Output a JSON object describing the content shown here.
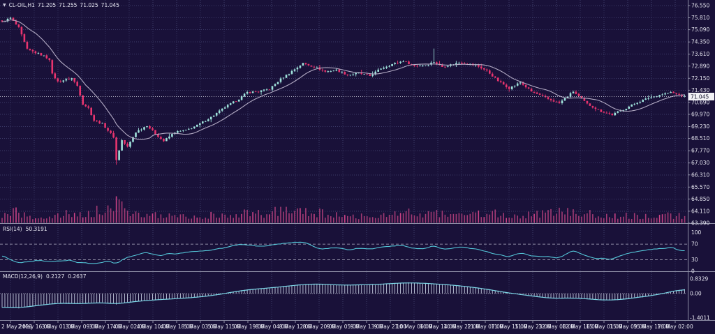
{
  "window": {
    "symbol": "CL-OIL,H1",
    "dropdown_icon": "▼",
    "ohlc": {
      "open": "71.205",
      "high": "71.255",
      "low": "71.025",
      "close": "71.045"
    }
  },
  "price_axis": {
    "labels": [
      "76.550",
      "75.810",
      "75.090",
      "74.350",
      "73.610",
      "72.890",
      "72.150",
      "71.430",
      "70.690",
      "69.970",
      "69.230",
      "68.510",
      "67.770",
      "67.030",
      "66.310",
      "65.570",
      "64.850",
      "64.110",
      "63.390"
    ],
    "current_price_tag": "71.045"
  },
  "time_axis": {
    "labels": [
      "2 May 2023",
      "2 May 16:00",
      "3 May 01:00",
      "3 May 09:00",
      "3 May 17:00",
      "4 May 02:00",
      "4 May 10:00",
      "4 May 18:00",
      "5 May 03:00",
      "5 May 11:00",
      "5 May 19:00",
      "8 May 04:00",
      "8 May 12:00",
      "8 May 20:00",
      "9 May 05:00",
      "9 May 13:00",
      "9 May 21:00",
      "10 May 06:00",
      "10 May 14:00",
      "10 May 22:00",
      "11 May 07:00",
      "11 May 15:00",
      "11 May 23:00",
      "12 May 08:00",
      "12 May 16:00",
      "15 May 01:00",
      "15 May 09:00",
      "15 May 17:00",
      "16 May 02:00"
    ]
  },
  "indicators": {
    "rsi": {
      "label": "RSI(14)",
      "value": "50.3191",
      "axis_labels": [
        "100",
        "70",
        "30",
        "0"
      ],
      "levels": [
        70,
        30
      ]
    },
    "macd": {
      "label": "MACD(12,26,9)",
      "value_main": "0.2127",
      "value_signal": "0.2637",
      "axis_labels": [
        "0.8329",
        "0.00",
        "-1.4011"
      ]
    }
  },
  "colors": {
    "background": "#191139",
    "grid": "#3c3a68",
    "bullish": "#9fe2db",
    "bearish": "#e8346e",
    "ma_line": "#b3abc4",
    "volume": "#a23a74",
    "volume_bright": "#cb4386",
    "rsi_line": "#54c6d8",
    "macd_line": "#7cd6e6",
    "macd_histogram": "#c6cde0",
    "separator": "#8e8ea6",
    "axis_text": "#e6e6f0",
    "level_dashed": "#b4b4c6",
    "bid_line": "#e0e0ea",
    "price_tag_bg": "#f2f2f6",
    "price_tag_text": "#10102a"
  },
  "chart_data": {
    "type": "candlestick",
    "title": "CL-OIL,H1",
    "timeframe_hours": 1,
    "candles_count": 246,
    "y_axis": {
      "min": 63.39,
      "max": 76.55,
      "tick_labels": [
        "76.550",
        "75.810",
        "75.090",
        "74.350",
        "73.610",
        "72.890",
        "72.150",
        "71.430",
        "70.690",
        "69.970",
        "69.230",
        "68.510",
        "67.770",
        "67.030",
        "66.310",
        "65.570",
        "64.850",
        "64.110",
        "63.390"
      ]
    },
    "x_axis": {
      "first": "2 May 2023",
      "last": "16 May 02:00"
    },
    "last_ohlc": {
      "open": 71.205,
      "high": 71.255,
      "low": 71.025,
      "close": 71.045
    },
    "bid_line_price": 71.045,
    "moving_average_window": 13,
    "price_keypoints": [
      [
        0,
        75.55
      ],
      [
        3,
        75.8
      ],
      [
        6,
        75.2
      ],
      [
        9,
        73.9
      ],
      [
        15,
        73.5
      ],
      [
        17,
        73.3
      ],
      [
        18,
        72.4
      ],
      [
        20,
        71.95
      ],
      [
        25,
        72.15
      ],
      [
        27,
        71.7
      ],
      [
        29,
        70.6
      ],
      [
        31,
        70.35
      ],
      [
        33,
        69.6
      ],
      [
        36,
        69.4
      ],
      [
        40,
        68.6
      ],
      [
        41,
        67.2
      ],
      [
        43,
        68.4
      ],
      [
        45,
        68.0
      ],
      [
        48,
        68.9
      ],
      [
        52,
        69.3
      ],
      [
        55,
        68.8
      ],
      [
        58,
        68.35
      ],
      [
        62,
        68.9
      ],
      [
        66,
        69.0
      ],
      [
        70,
        69.3
      ],
      [
        75,
        69.8
      ],
      [
        80,
        70.4
      ],
      [
        85,
        70.9
      ],
      [
        88,
        71.3
      ],
      [
        92,
        71.35
      ],
      [
        96,
        71.5
      ],
      [
        100,
        72.1
      ],
      [
        105,
        72.7
      ],
      [
        108,
        73.05
      ],
      [
        112,
        72.85
      ],
      [
        116,
        72.55
      ],
      [
        120,
        72.65
      ],
      [
        124,
        72.35
      ],
      [
        128,
        72.45
      ],
      [
        132,
        72.3
      ],
      [
        136,
        72.75
      ],
      [
        140,
        73.0
      ],
      [
        144,
        73.2
      ],
      [
        148,
        72.9
      ],
      [
        152,
        72.95
      ],
      [
        155,
        73.15
      ],
      [
        158,
        72.85
      ],
      [
        164,
        73.1
      ],
      [
        170,
        72.95
      ],
      [
        174,
        72.6
      ],
      [
        178,
        72.0
      ],
      [
        182,
        71.55
      ],
      [
        186,
        71.9
      ],
      [
        190,
        71.35
      ],
      [
        196,
        70.9
      ],
      [
        200,
        70.65
      ],
      [
        205,
        71.35
      ],
      [
        210,
        70.6
      ],
      [
        215,
        70.15
      ],
      [
        219,
        69.95
      ],
      [
        224,
        70.35
      ],
      [
        228,
        70.7
      ],
      [
        232,
        70.95
      ],
      [
        236,
        71.15
      ],
      [
        240,
        71.3
      ],
      [
        243,
        71.15
      ],
      [
        245,
        71.045
      ]
    ],
    "wick_events": [
      [
        41,
        "low",
        66.92
      ],
      [
        155,
        "high",
        73.95
      ]
    ],
    "volume_profile_keypoints": [
      [
        0,
        0.35
      ],
      [
        5,
        0.5
      ],
      [
        10,
        0.25
      ],
      [
        18,
        0.3
      ],
      [
        25,
        0.45
      ],
      [
        33,
        0.5
      ],
      [
        41,
        1.0
      ],
      [
        46,
        0.55
      ],
      [
        52,
        0.4
      ],
      [
        58,
        0.35
      ],
      [
        68,
        0.3
      ],
      [
        77,
        0.35
      ],
      [
        85,
        0.45
      ],
      [
        95,
        0.4
      ],
      [
        104,
        0.8
      ],
      [
        112,
        0.5
      ],
      [
        120,
        0.35
      ],
      [
        128,
        0.3
      ],
      [
        136,
        0.4
      ],
      [
        144,
        0.5
      ],
      [
        152,
        0.45
      ],
      [
        158,
        0.5
      ],
      [
        166,
        0.4
      ],
      [
        172,
        0.45
      ],
      [
        180,
        0.4
      ],
      [
        188,
        0.35
      ],
      [
        196,
        0.45
      ],
      [
        205,
        0.65
      ],
      [
        212,
        0.4
      ],
      [
        220,
        0.35
      ],
      [
        228,
        0.3
      ],
      [
        236,
        0.35
      ],
      [
        245,
        0.3
      ]
    ],
    "rsi_panel": {
      "period": 14,
      "last_value": 50.3191,
      "range": [
        0,
        100
      ],
      "levels": [
        70,
        30
      ],
      "keypoints": [
        [
          0,
          42
        ],
        [
          3,
          30
        ],
        [
          6,
          22
        ],
        [
          12,
          28
        ],
        [
          20,
          25
        ],
        [
          24,
          30
        ],
        [
          28,
          22
        ],
        [
          33,
          20
        ],
        [
          38,
          26
        ],
        [
          41,
          16
        ],
        [
          44,
          35
        ],
        [
          48,
          42
        ],
        [
          52,
          48
        ],
        [
          56,
          40
        ],
        [
          60,
          45
        ],
        [
          66,
          48
        ],
        [
          72,
          52
        ],
        [
          78,
          58
        ],
        [
          82,
          65
        ],
        [
          86,
          70
        ],
        [
          90,
          66
        ],
        [
          94,
          63
        ],
        [
          98,
          70
        ],
        [
          103,
          74
        ],
        [
          108,
          76
        ],
        [
          112,
          62
        ],
        [
          116,
          58
        ],
        [
          120,
          62
        ],
        [
          124,
          55
        ],
        [
          128,
          60
        ],
        [
          132,
          57
        ],
        [
          136,
          63
        ],
        [
          140,
          66
        ],
        [
          144,
          68
        ],
        [
          148,
          58
        ],
        [
          152,
          60
        ],
        [
          155,
          65
        ],
        [
          158,
          56
        ],
        [
          164,
          62
        ],
        [
          170,
          58
        ],
        [
          174,
          50
        ],
        [
          178,
          42
        ],
        [
          182,
          38
        ],
        [
          186,
          48
        ],
        [
          190,
          40
        ],
        [
          196,
          37
        ],
        [
          200,
          35
        ],
        [
          205,
          52
        ],
        [
          210,
          38
        ],
        [
          215,
          33
        ],
        [
          219,
          32
        ],
        [
          224,
          45
        ],
        [
          228,
          52
        ],
        [
          232,
          56
        ],
        [
          236,
          58
        ],
        [
          240,
          62
        ],
        [
          243,
          55
        ],
        [
          245,
          50.3
        ]
      ]
    },
    "macd_panel": {
      "fast": 12,
      "slow": 26,
      "signal": 9,
      "last_main": 0.2127,
      "last_signal": 0.2637,
      "range": [
        -1.4011,
        0.8329
      ],
      "keypoints": [
        [
          0,
          -0.78
        ],
        [
          6,
          -0.82
        ],
        [
          12,
          -0.7
        ],
        [
          20,
          -0.55
        ],
        [
          28,
          -0.58
        ],
        [
          36,
          -0.52
        ],
        [
          41,
          -0.6
        ],
        [
          48,
          -0.45
        ],
        [
          56,
          -0.35
        ],
        [
          64,
          -0.28
        ],
        [
          72,
          -0.18
        ],
        [
          78,
          -0.05
        ],
        [
          84,
          0.12
        ],
        [
          90,
          0.25
        ],
        [
          96,
          0.32
        ],
        [
          102,
          0.42
        ],
        [
          108,
          0.52
        ],
        [
          114,
          0.55
        ],
        [
          118,
          0.52
        ],
        [
          122,
          0.48
        ],
        [
          128,
          0.5
        ],
        [
          134,
          0.52
        ],
        [
          140,
          0.58
        ],
        [
          146,
          0.62
        ],
        [
          150,
          0.6
        ],
        [
          156,
          0.55
        ],
        [
          162,
          0.48
        ],
        [
          168,
          0.38
        ],
        [
          174,
          0.25
        ],
        [
          180,
          0.08
        ],
        [
          186,
          -0.05
        ],
        [
          192,
          -0.18
        ],
        [
          198,
          -0.28
        ],
        [
          204,
          -0.25
        ],
        [
          210,
          -0.3
        ],
        [
          216,
          -0.38
        ],
        [
          222,
          -0.35
        ],
        [
          228,
          -0.22
        ],
        [
          234,
          -0.1
        ],
        [
          240,
          0.1
        ],
        [
          245,
          0.2637
        ]
      ]
    }
  }
}
